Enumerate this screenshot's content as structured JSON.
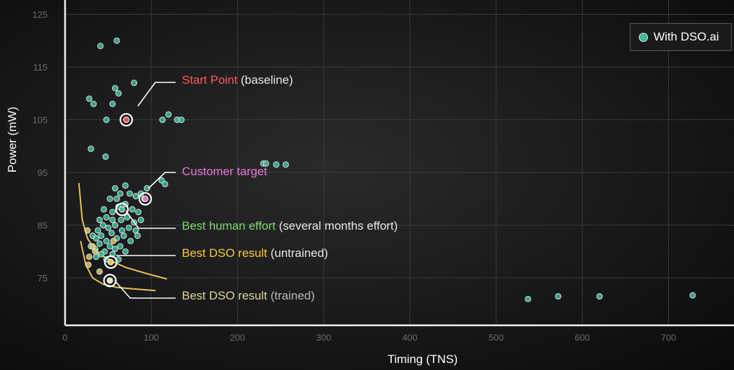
{
  "chart_data": {
    "type": "scatter",
    "title": "",
    "xlabel": "Timing (TNS)",
    "ylabel": "Power (mW)",
    "xlim": [
      0,
      780
    ],
    "ylim": [
      66,
      126
    ],
    "xticks": [
      0,
      100,
      200,
      300,
      400,
      500,
      600,
      700
    ],
    "yticks": [
      75,
      85,
      95,
      105,
      115,
      125
    ],
    "grid": true,
    "legend_position": "top-right",
    "series": [
      {
        "name": "With DSO.ai",
        "color": "#3fb79a",
        "points": [
          [
            41,
            119
          ],
          [
            60,
            120
          ],
          [
            28,
            109
          ],
          [
            33,
            108
          ],
          [
            58,
            111
          ],
          [
            62,
            110
          ],
          [
            80,
            112
          ],
          [
            55,
            108
          ],
          [
            48,
            105
          ],
          [
            120,
            106
          ],
          [
            113,
            105
          ],
          [
            130,
            105
          ],
          [
            135,
            105
          ],
          [
            30,
            99.5
          ],
          [
            47,
            98
          ],
          [
            230,
            96.7
          ],
          [
            233,
            96.7
          ],
          [
            245,
            96.5
          ],
          [
            256,
            96.5
          ],
          [
            112,
            93.5
          ],
          [
            116,
            92.8
          ],
          [
            58,
            92
          ],
          [
            70,
            92.5
          ],
          [
            95,
            92
          ],
          [
            52,
            90
          ],
          [
            60,
            90
          ],
          [
            64,
            91
          ],
          [
            75,
            91
          ],
          [
            82,
            90.5
          ],
          [
            88,
            91
          ],
          [
            92,
            90
          ],
          [
            45,
            88
          ],
          [
            55,
            87.5
          ],
          [
            62,
            88.5
          ],
          [
            70,
            89
          ],
          [
            78,
            88
          ],
          [
            85,
            87.5
          ],
          [
            40,
            86
          ],
          [
            48,
            86.5
          ],
          [
            55,
            86
          ],
          [
            65,
            86
          ],
          [
            72,
            86.5
          ],
          [
            80,
            85.5
          ],
          [
            88,
            86
          ],
          [
            38,
            84
          ],
          [
            44,
            85
          ],
          [
            50,
            84.5
          ],
          [
            58,
            85
          ],
          [
            66,
            84
          ],
          [
            74,
            84.5
          ],
          [
            82,
            84
          ],
          [
            32,
            83
          ],
          [
            36,
            82.5
          ],
          [
            42,
            83
          ],
          [
            48,
            82
          ],
          [
            54,
            83.5
          ],
          [
            60,
            82.5
          ],
          [
            68,
            83
          ],
          [
            76,
            82
          ],
          [
            84,
            83
          ],
          [
            30,
            81
          ],
          [
            35,
            80.5
          ],
          [
            40,
            81.5
          ],
          [
            46,
            80
          ],
          [
            52,
            81
          ],
          [
            58,
            80.5
          ],
          [
            64,
            81
          ],
          [
            70,
            80
          ],
          [
            36,
            79
          ],
          [
            42,
            79.5
          ],
          [
            48,
            78.5
          ],
          [
            55,
            79.5
          ],
          [
            62,
            78.5
          ],
          [
            537,
            71
          ],
          [
            572,
            71.5
          ],
          [
            620,
            71.5
          ],
          [
            728,
            71.7
          ]
        ]
      },
      {
        "name": "",
        "color": "#e8c552",
        "points": [
          [
            26,
            84
          ],
          [
            32,
            81
          ],
          [
            28,
            79
          ],
          [
            27,
            77.5
          ],
          [
            40,
            76.2
          ],
          [
            56,
            82
          ],
          [
            35,
            80
          ]
        ]
      }
    ],
    "curves": [
      {
        "color": "#e8c552",
        "points": [
          [
            16,
            93
          ],
          [
            20,
            86
          ],
          [
            26,
            82.5
          ],
          [
            36,
            80
          ],
          [
            50,
            78.5
          ],
          [
            70,
            77
          ],
          [
            95,
            75.8
          ],
          [
            118,
            74.8
          ]
        ]
      },
      {
        "color": "#e8c552",
        "points": [
          [
            18,
            82
          ],
          [
            24,
            77.5
          ],
          [
            32,
            75
          ],
          [
            44,
            73.8
          ],
          [
            60,
            73.2
          ],
          [
            80,
            72.9
          ],
          [
            105,
            72.6
          ]
        ]
      }
    ],
    "annotations": [
      {
        "id": "start",
        "marker": [
          71,
          105
        ],
        "marker_color": "#ffffff",
        "dot_color": "#e0584f",
        "label_x": 260,
        "label_y": 114,
        "line": [
          [
            197,
            152
          ],
          [
            222,
            118
          ],
          [
            251,
            118
          ]
        ],
        "highlight": "Start Point",
        "highlight_color": "#ff5a5a",
        "rest": " (baseline)",
        "rest_color": "#e6e6e6"
      },
      {
        "id": "customer",
        "marker": [
          93,
          90
        ],
        "marker_color": "#ffffff",
        "dot_color": "#e070c8",
        "label_x": 260,
        "label_y": 245,
        "line": [
          [
            212,
            270
          ],
          [
            236,
            247
          ],
          [
            251,
            247
          ]
        ],
        "highlight": "Customer target",
        "highlight_color": "#e47ad6",
        "rest": "",
        "rest_color": "#e6e6e6"
      },
      {
        "id": "human",
        "marker": [
          66,
          88
        ],
        "marker_color": "#ffffff",
        "dot_color": "#3fb79a",
        "label_x": 260,
        "label_y": 323,
        "line": [
          [
            180,
            302
          ],
          [
            198,
            327
          ],
          [
            251,
            327
          ]
        ],
        "highlight": "Best human effort",
        "highlight_color": "#7fd66a",
        "rest": " (several months effort)",
        "rest_color": "#e6e6e6"
      },
      {
        "id": "dso-untrained",
        "marker": [
          53,
          78
        ],
        "marker_color": "#ffffff",
        "dot_color": "#e8c552",
        "label_x": 260,
        "label_y": 362,
        "line": [
          [
            166,
            366
          ],
          [
            251,
            366
          ]
        ],
        "highlight": "Best DSO result",
        "highlight_color": "#ffc93c",
        "rest": " (untrained)",
        "rest_color": "#e6e6e6"
      },
      {
        "id": "dso-trained",
        "marker": [
          52,
          74.5
        ],
        "marker_color": "#ffffff",
        "dot_color": "#e8e4c8",
        "label_x": 260,
        "label_y": 423,
        "line": [
          [
            164,
            402
          ],
          [
            186,
            427
          ],
          [
            251,
            427
          ]
        ],
        "highlight": "Best DSO result",
        "highlight_color": "#ddd79b",
        "rest": " (trained)",
        "rest_color": "#b8b8b8"
      }
    ]
  }
}
